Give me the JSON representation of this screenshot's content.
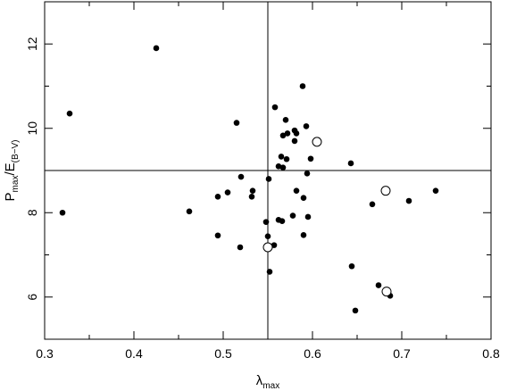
{
  "chart_data": {
    "type": "scatter",
    "xlabel": "λ",
    "xlabel_sub": "max",
    "ylabel_parts": [
      "P",
      "max",
      "/E",
      "(B−V)"
    ],
    "xlim": [
      0.3,
      0.8
    ],
    "ylim": [
      5,
      13
    ],
    "x_ticks": [
      0.3,
      0.4,
      0.5,
      0.6,
      0.7,
      0.8
    ],
    "x_tick_labels": [
      "0.3",
      "0.4",
      "0.5",
      "0.6",
      "0.7",
      "0.8"
    ],
    "y_ticks": [
      6,
      8,
      10,
      12
    ],
    "y_tick_labels": [
      "6",
      "8",
      "10",
      "12"
    ],
    "reference_lines": {
      "x": 0.55,
      "y": 9.0
    },
    "grid": false,
    "legend": "none",
    "series": [
      {
        "marker": "filled-circle",
        "points": [
          [
            0.32,
            8.0
          ],
          [
            0.328,
            10.35
          ],
          [
            0.425,
            11.9
          ],
          [
            0.462,
            8.03
          ],
          [
            0.494,
            8.38
          ],
          [
            0.494,
            7.46
          ],
          [
            0.505,
            8.48
          ],
          [
            0.515,
            10.13
          ],
          [
            0.519,
            7.18
          ],
          [
            0.52,
            8.85
          ],
          [
            0.532,
            8.38
          ],
          [
            0.533,
            8.52
          ],
          [
            0.548,
            7.78
          ],
          [
            0.55,
            7.44
          ],
          [
            0.551,
            8.8
          ],
          [
            0.552,
            6.6
          ],
          [
            0.557,
            7.23
          ],
          [
            0.558,
            10.5
          ],
          [
            0.562,
            9.1
          ],
          [
            0.562,
            7.83
          ],
          [
            0.565,
            9.33
          ],
          [
            0.566,
            7.8
          ],
          [
            0.567,
            9.83
          ],
          [
            0.567,
            9.07
          ],
          [
            0.57,
            10.2
          ],
          [
            0.571,
            9.27
          ],
          [
            0.572,
            9.88
          ],
          [
            0.578,
            7.93
          ],
          [
            0.58,
            9.95
          ],
          [
            0.58,
            9.7
          ],
          [
            0.582,
            9.88
          ],
          [
            0.582,
            8.52
          ],
          [
            0.589,
            11.0
          ],
          [
            0.59,
            8.35
          ],
          [
            0.59,
            7.47
          ],
          [
            0.593,
            10.05
          ],
          [
            0.594,
            8.93
          ],
          [
            0.595,
            7.9
          ],
          [
            0.598,
            9.28
          ],
          [
            0.606,
            9.72
          ],
          [
            0.643,
            9.17
          ],
          [
            0.644,
            6.73
          ],
          [
            0.648,
            5.68
          ],
          [
            0.667,
            8.2
          ],
          [
            0.674,
            6.28
          ],
          [
            0.687,
            6.03
          ],
          [
            0.708,
            8.28
          ],
          [
            0.738,
            8.52
          ]
        ]
      },
      {
        "marker": "open-circle",
        "points": [
          [
            0.55,
            7.18
          ],
          [
            0.605,
            9.68
          ],
          [
            0.682,
            8.52
          ],
          [
            0.683,
            6.13
          ]
        ]
      }
    ]
  }
}
